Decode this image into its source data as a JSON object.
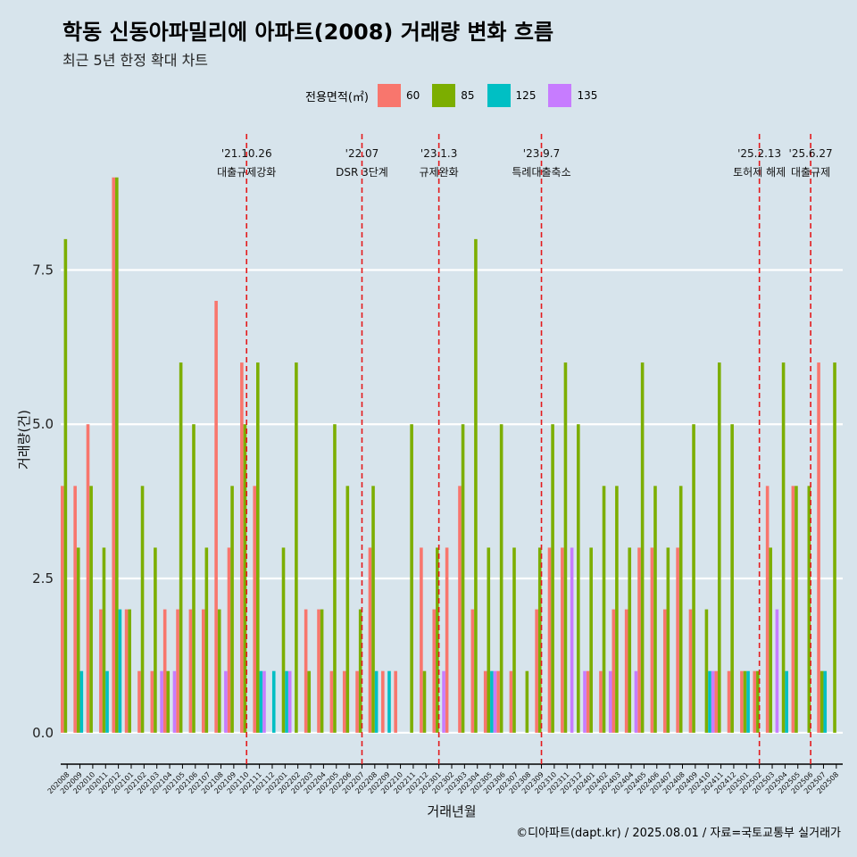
{
  "title": "학동 신동아파밀리에 아파트(2008) 거래량 변화 흐름",
  "subtitle": "최근 5년 한정 확대 차트",
  "caption": "©디아파트(dapt.kr) / 2025.08.01 / 자료=국토교통부 실거래가",
  "legend": {
    "title": "전용면적(㎡)",
    "items": [
      {
        "label": "60",
        "color": "#f8766d"
      },
      {
        "label": "85",
        "color": "#7cae00"
      },
      {
        "label": "125",
        "color": "#00bfc4"
      },
      {
        "label": "135",
        "color": "#c77cff"
      }
    ]
  },
  "colors": {
    "background": "#d7e4ec",
    "grid": "#ffffff",
    "event_line": "#e41a1c"
  },
  "chart_data": {
    "type": "bar",
    "xlabel": "거래년월",
    "ylabel": "거래량(건)",
    "ylim": [
      -0.35,
      9.85
    ],
    "yticks": [
      "0.0",
      "2.5",
      "5.0",
      "7.5"
    ],
    "grid": true,
    "legend_position": "top",
    "categories": [
      "202008",
      "202009",
      "202010",
      "202011",
      "202012",
      "202101",
      "202102",
      "202103",
      "202104",
      "202105",
      "202106",
      "202107",
      "202108",
      "202109",
      "202110",
      "202111",
      "202112",
      "202201",
      "202202",
      "202203",
      "202204",
      "202205",
      "202206",
      "202207",
      "202208",
      "202209",
      "202210",
      "202211",
      "202212",
      "202301",
      "202302",
      "202303",
      "202304",
      "202305",
      "202306",
      "202307",
      "202308",
      "202309",
      "202310",
      "202311",
      "202312",
      "202401",
      "202402",
      "202403",
      "202404",
      "202405",
      "202406",
      "202407",
      "202408",
      "202409",
      "202410",
      "202411",
      "202412",
      "202501",
      "202502",
      "202503",
      "202504",
      "202505",
      "202506",
      "202507",
      "202508"
    ],
    "series": [
      {
        "name": "60",
        "values": [
          4,
          4,
          5,
          2,
          9,
          2,
          1,
          1,
          2,
          2,
          2,
          2,
          7,
          3,
          6,
          4,
          0,
          0,
          0,
          2,
          2,
          1,
          1,
          1,
          3,
          1,
          1,
          0,
          3,
          2,
          3,
          4,
          2,
          1,
          1,
          1,
          0,
          2,
          3,
          3,
          0,
          1,
          1,
          2,
          2,
          3,
          3,
          2,
          3,
          2,
          0,
          1,
          1,
          1,
          1,
          4,
          0,
          4,
          0,
          6,
          0
        ],
        "months": [
          "202008",
          "202009",
          "202010",
          "202011",
          "202012",
          "202101",
          "202102",
          "202103",
          "202104",
          "202105",
          "202106",
          "202107",
          "202108",
          "202109",
          "202110",
          "202111",
          "202112",
          "202201",
          "202202",
          "202203",
          "202204",
          "202205",
          "202206",
          "202207",
          "202208",
          "202209",
          "202210",
          "202211",
          "202212",
          "202301",
          "202302",
          "202303",
          "202304",
          "202305",
          "202306",
          "202307",
          "202308",
          "202309",
          "202310",
          "202311",
          "202312",
          "202401",
          "202402",
          "202403",
          "202404",
          "202405",
          "202406",
          "202407",
          "202408",
          "202409",
          "202410",
          "202411",
          "202412",
          "202501",
          "202502",
          "202503",
          "202504",
          "202505",
          "202506",
          "202507",
          "202508"
        ]
      },
      {
        "name": "85",
        "values": [
          8,
          3,
          4,
          3,
          9,
          2,
          4,
          3,
          1,
          6,
          5,
          3,
          2,
          4,
          5,
          6,
          0,
          3,
          6,
          1,
          2,
          5,
          4,
          2,
          4,
          0,
          0,
          5,
          1,
          3,
          0,
          5,
          8,
          3,
          5,
          3,
          1,
          3,
          5,
          6,
          5,
          3,
          4,
          4,
          3,
          6,
          4,
          3,
          4,
          5,
          2,
          6,
          5,
          1,
          1,
          3,
          6,
          4,
          4,
          1,
          6
        ]
      },
      {
        "name": "125",
        "values": [
          0,
          1,
          0,
          1,
          2,
          0,
          0,
          0,
          0,
          0,
          0,
          0,
          0,
          0,
          0,
          1,
          1,
          1,
          0,
          0,
          0,
          0,
          0,
          0,
          1,
          1,
          0,
          0,
          0,
          0,
          0,
          0,
          0,
          1,
          0,
          0,
          0,
          0,
          0,
          0,
          0,
          0,
          0,
          0,
          0,
          0,
          0,
          0,
          0,
          0,
          1,
          0,
          0,
          1,
          0,
          0,
          1,
          0,
          0,
          1,
          0
        ]
      },
      {
        "name": "135",
        "values": [
          0,
          0,
          0,
          0,
          0,
          0,
          0,
          1,
          1,
          0,
          0,
          0,
          1,
          0,
          0,
          1,
          0,
          1,
          0,
          0,
          0,
          0,
          0,
          0,
          0,
          0,
          0,
          0,
          0,
          1,
          0,
          0,
          0,
          1,
          0,
          0,
          0,
          0,
          0,
          3,
          1,
          0,
          1,
          0,
          1,
          0,
          0,
          0,
          0,
          0,
          1,
          0,
          0,
          0,
          0,
          2,
          0,
          0,
          0,
          0,
          0
        ]
      }
    ],
    "events": [
      {
        "month": "202110",
        "line1": "'21.10.26",
        "line2": "대출규제강화"
      },
      {
        "month": "202207",
        "line1": "'22.07",
        "line2": "DSR 3단계"
      },
      {
        "month": "202301",
        "line1": "'23.1.3",
        "line2": "규제완화"
      },
      {
        "month": "202309",
        "line1": "'23.9.7",
        "line2": "특례대출축소"
      },
      {
        "month": "202502",
        "line1": "'25.2.13",
        "line2": "토허제 해제"
      },
      {
        "month": "202506",
        "line1": "'25.6.27",
        "line2": "대출규제"
      }
    ]
  }
}
